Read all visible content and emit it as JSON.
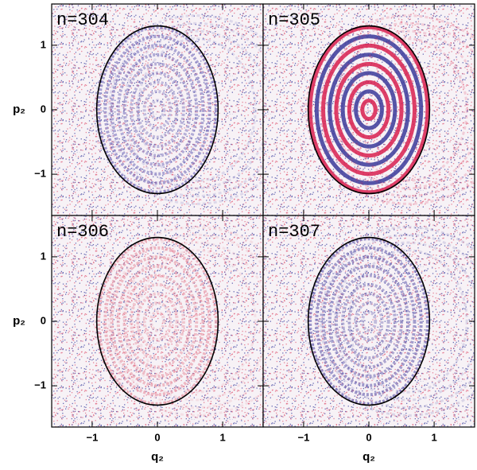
{
  "chart_data": [
    {
      "type": "phase-space",
      "label": "n=304",
      "color": "#6b63b5",
      "xlim": [
        -1.62,
        1.62
      ],
      "ylim": [
        -1.64,
        1.64
      ],
      "xticks": [
        {
          "value": -1,
          "label": "−1"
        },
        0,
        1
      ],
      "yticks": [
        {
          "value": -1,
          "label": "−1"
        },
        0,
        1
      ],
      "ylabel": "p₂"
    },
    {
      "type": "phase-space",
      "label": "n=305",
      "color": "#d8204f",
      "xlim": [
        -1.62,
        1.62
      ],
      "ylim": [
        -1.64,
        1.64
      ],
      "xticks": [
        {
          "value": -1,
          "label": "−1"
        },
        0,
        1
      ],
      "yticks": [
        {
          "value": -1,
          "label": "−1"
        },
        0,
        1
      ]
    },
    {
      "type": "phase-space",
      "label": "n=306",
      "color": "#e58a9a",
      "xlim": [
        -1.62,
        1.62
      ],
      "ylim": [
        -1.64,
        1.64
      ],
      "xticks": [
        {
          "value": -1,
          "label": "−1"
        },
        0,
        1
      ],
      "yticks": [
        {
          "value": -1,
          "label": "−1"
        },
        0,
        1
      ],
      "xlabel": "q₂",
      "ylabel": "p₂"
    },
    {
      "type": "phase-space",
      "label": "n=307",
      "color": "#5a52a8",
      "xlim": [
        -1.62,
        1.62
      ],
      "ylim": [
        -1.64,
        1.64
      ],
      "xticks": [
        {
          "value": -1,
          "label": "−1"
        },
        0,
        1
      ],
      "yticks": [
        {
          "value": -1,
          "label": "−1"
        },
        0,
        1
      ],
      "xlabel": "q₂"
    }
  ]
}
